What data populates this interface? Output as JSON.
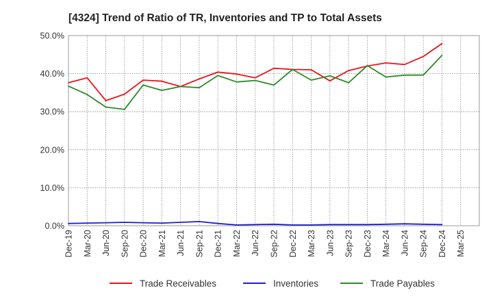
{
  "chart_data": {
    "type": "line",
    "title": "[4324]  Trend of Ratio of TR, Inventories and TP to Total Assets",
    "xlabel": "",
    "ylabel": "",
    "ylim": [
      0,
      50
    ],
    "yticks": [
      "0.0%",
      "10.0%",
      "20.0%",
      "30.0%",
      "40.0%",
      "50.0%"
    ],
    "ytick_values": [
      0,
      10,
      20,
      30,
      40,
      50
    ],
    "xticks": [
      "Dec-19",
      "Mar-20",
      "Jun-20",
      "Sep-20",
      "Dec-20",
      "Mar-21",
      "Jun-21",
      "Sep-21",
      "Dec-21",
      "Mar-22",
      "Jun-22",
      "Sep-22",
      "Dec-22",
      "Mar-23",
      "Jun-23",
      "Sep-23",
      "Dec-23",
      "Mar-24",
      "Jun-24",
      "Sep-24",
      "Dec-24",
      "Mar-25"
    ],
    "x": [
      "Dec-19",
      "Mar-20",
      "Jun-20",
      "Sep-20",
      "Dec-20",
      "Mar-21",
      "Jun-21",
      "Sep-21",
      "Dec-21",
      "Mar-22",
      "Jun-22",
      "Sep-22",
      "Dec-22",
      "Mar-23",
      "Jun-23",
      "Sep-23",
      "Dec-23",
      "Mar-24",
      "Jun-24",
      "Sep-24",
      "Dec-24"
    ],
    "grid": true,
    "legend_position": "bottom",
    "series": [
      {
        "name": "Trade Receivables",
        "color": "#e8141b",
        "values": [
          37.6,
          38.9,
          32.9,
          34.6,
          38.3,
          38.0,
          36.6,
          38.6,
          40.4,
          39.9,
          38.9,
          41.4,
          41.1,
          41.0,
          38.1,
          40.8,
          42.0,
          42.8,
          42.4,
          44.5,
          47.9
        ]
      },
      {
        "name": "Inventories",
        "color": "#1c1ccc",
        "values": [
          0.6,
          0.7,
          0.8,
          0.9,
          0.8,
          0.7,
          0.9,
          1.1,
          0.6,
          0.2,
          0.3,
          0.4,
          0.2,
          0.2,
          0.3,
          0.3,
          0.3,
          0.4,
          0.5,
          0.4,
          0.3
        ]
      },
      {
        "name": "Trade Payables",
        "color": "#2a8a2a",
        "values": [
          36.7,
          34.5,
          31.2,
          30.6,
          37.0,
          35.6,
          36.6,
          36.3,
          39.5,
          37.8,
          38.2,
          37.0,
          41.1,
          38.3,
          39.4,
          37.6,
          42.1,
          39.1,
          39.6,
          39.6,
          44.8
        ]
      }
    ]
  }
}
